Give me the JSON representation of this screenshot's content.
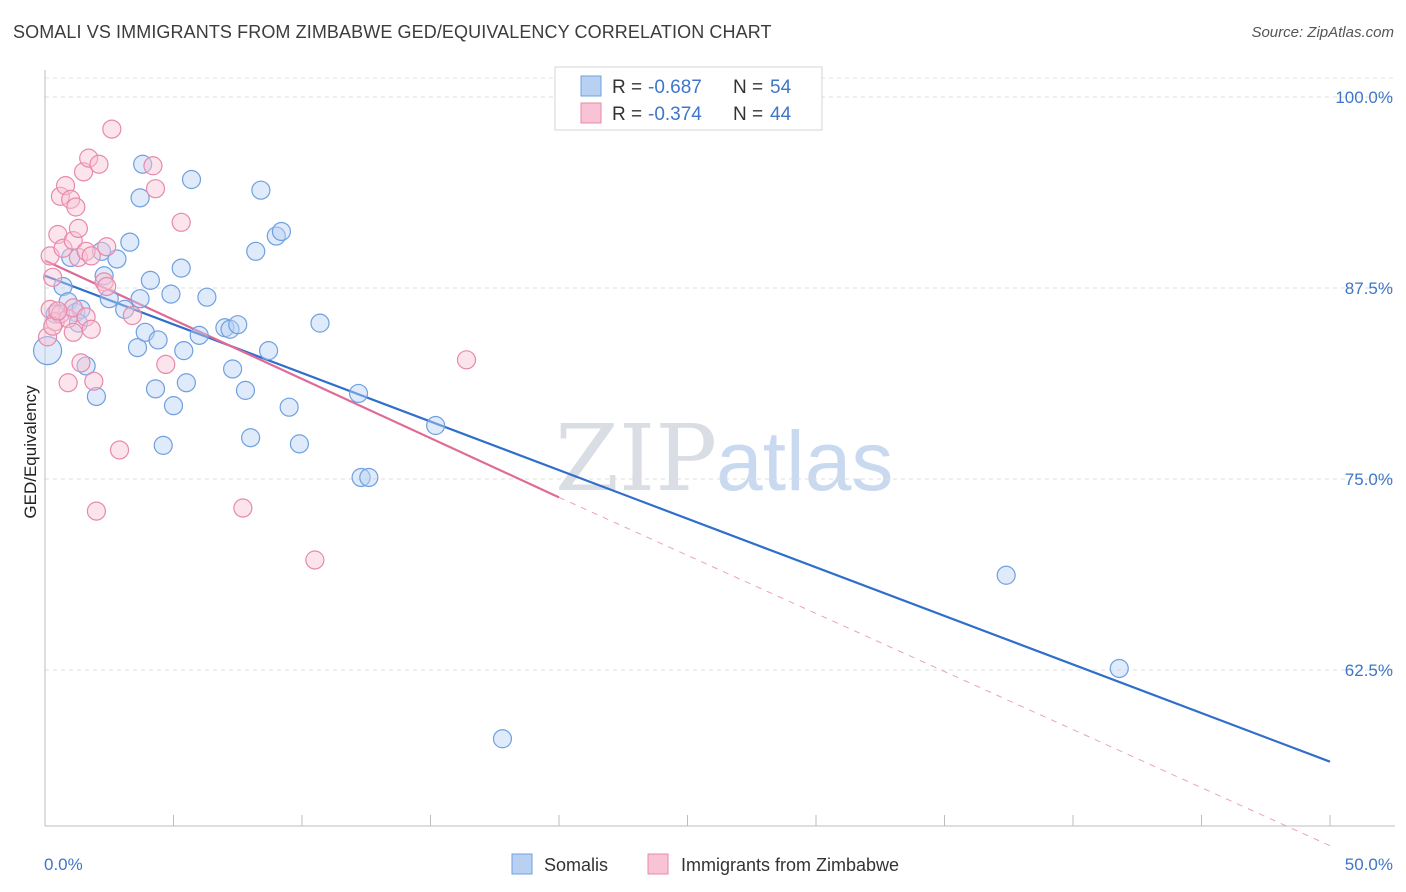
{
  "title": "SOMALI VS IMMIGRANTS FROM ZIMBABWE GED/EQUIVALENCY CORRELATION CHART",
  "source": "Source: ZipAtlas.com",
  "watermark": {
    "zip": "ZIP",
    "atlas": "atlas"
  },
  "chart_data": {
    "type": "scatter",
    "ylabel": "GED/Equivalency",
    "xlim": [
      0,
      50
    ],
    "ylim": [
      50,
      102
    ],
    "x_tick_labels": [
      {
        "v": 0,
        "label": "0.0%"
      },
      {
        "v": 50,
        "label": "50.0%"
      }
    ],
    "y_tick_labels": [
      {
        "v": 100,
        "label": "100.0%"
      },
      {
        "v": 87.5,
        "label": "87.5%"
      },
      {
        "v": 75,
        "label": "75.0%"
      },
      {
        "v": 62.5,
        "label": "62.5%"
      }
    ],
    "grid": "horizontal dashed",
    "legend_stats": [
      {
        "r_label": "R = ",
        "r_value": "-0.687",
        "n_label": "N = ",
        "n_value": "54",
        "color": "#6fa0e0",
        "fill": "#b8d1f3"
      },
      {
        "r_label": "R = ",
        "r_value": "-0.374",
        "n_label": "N = ",
        "n_value": "44",
        "color": "#e889ab",
        "fill": "#f8c3d4"
      }
    ],
    "series": [
      {
        "name": "Somalis",
        "color": "#6fa0e0",
        "fill": "#b8d1f3",
        "trend": {
          "x0": 0,
          "y0": 88.3,
          "x1": 50,
          "y1": 56.5,
          "color": "#2f6fcb"
        },
        "points": [
          [
            0.1,
            83.4
          ],
          [
            0.4,
            85.8
          ],
          [
            0.7,
            87.6
          ],
          [
            0.9,
            86.6
          ],
          [
            1.0,
            89.5
          ],
          [
            1.2,
            85.9
          ],
          [
            1.4,
            86.1
          ],
          [
            1.6,
            82.4
          ],
          [
            2.0,
            80.4
          ],
          [
            2.2,
            89.9
          ],
          [
            2.3,
            88.3
          ],
          [
            2.5,
            86.8
          ],
          [
            2.8,
            89.4
          ],
          [
            3.1,
            86.1
          ],
          [
            3.3,
            90.5
          ],
          [
            3.6,
            83.6
          ],
          [
            3.7,
            93.4
          ],
          [
            3.8,
            95.6
          ],
          [
            3.9,
            84.6
          ],
          [
            4.1,
            88.0
          ],
          [
            4.3,
            80.9
          ],
          [
            4.4,
            84.1
          ],
          [
            4.6,
            77.2
          ],
          [
            4.9,
            87.1
          ],
          [
            5.0,
            79.8
          ],
          [
            5.3,
            88.8
          ],
          [
            5.4,
            83.4
          ],
          [
            5.5,
            81.3
          ],
          [
            5.7,
            94.6
          ],
          [
            6.0,
            84.4
          ],
          [
            6.3,
            86.9
          ],
          [
            7.0,
            84.9
          ],
          [
            7.2,
            84.8
          ],
          [
            7.3,
            82.2
          ],
          [
            7.5,
            85.1
          ],
          [
            7.8,
            80.8
          ],
          [
            8.0,
            77.7
          ],
          [
            8.2,
            89.9
          ],
          [
            8.4,
            93.9
          ],
          [
            8.7,
            83.4
          ],
          [
            9.0,
            90.9
          ],
          [
            9.2,
            91.2
          ],
          [
            9.5,
            79.7
          ],
          [
            9.9,
            77.3
          ],
          [
            10.7,
            85.2
          ],
          [
            12.2,
            80.6
          ],
          [
            12.3,
            75.1
          ],
          [
            12.6,
            75.1
          ],
          [
            15.2,
            78.5
          ],
          [
            17.8,
            58.0
          ],
          [
            37.4,
            68.7
          ],
          [
            41.8,
            62.6
          ],
          [
            3.7,
            86.8
          ],
          [
            1.3,
            85.2
          ]
        ]
      },
      {
        "name": "Immigrants from Zimbabwe",
        "color": "#e889ab",
        "fill": "#f8c3d4",
        "trend": {
          "x0": 0,
          "y0": 89.3,
          "x1": 20,
          "y1": 73.8,
          "color": "#e06a96"
        },
        "trend_dashed": {
          "x0": 20,
          "y0": 73.8,
          "x1": 50,
          "y1": 51.0,
          "color": "#e8a3bb"
        },
        "points": [
          [
            0.1,
            84.3
          ],
          [
            0.2,
            86.1
          ],
          [
            0.2,
            89.6
          ],
          [
            0.3,
            88.2
          ],
          [
            0.4,
            85.3
          ],
          [
            0.5,
            91.0
          ],
          [
            0.6,
            93.5
          ],
          [
            0.6,
            85.8
          ],
          [
            0.7,
            90.1
          ],
          [
            0.8,
            94.2
          ],
          [
            0.9,
            85.5
          ],
          [
            1.0,
            93.3
          ],
          [
            1.1,
            90.6
          ],
          [
            1.1,
            86.2
          ],
          [
            1.2,
            92.8
          ],
          [
            1.3,
            89.5
          ],
          [
            1.3,
            91.4
          ],
          [
            1.4,
            82.6
          ],
          [
            1.5,
            95.1
          ],
          [
            1.6,
            89.9
          ],
          [
            1.6,
            85.6
          ],
          [
            1.7,
            96.0
          ],
          [
            1.8,
            89.6
          ],
          [
            1.9,
            81.4
          ],
          [
            2.0,
            72.9
          ],
          [
            2.1,
            95.6
          ],
          [
            2.3,
            87.9
          ],
          [
            2.4,
            90.2
          ],
          [
            2.6,
            97.9
          ],
          [
            2.9,
            76.9
          ],
          [
            3.4,
            85.7
          ],
          [
            4.2,
            95.5
          ],
          [
            4.3,
            94.0
          ],
          [
            4.7,
            82.5
          ],
          [
            5.3,
            91.8
          ],
          [
            7.7,
            73.1
          ],
          [
            10.5,
            69.7
          ],
          [
            16.4,
            82.8
          ],
          [
            0.9,
            81.3
          ],
          [
            2.4,
            87.6
          ],
          [
            1.8,
            84.8
          ],
          [
            0.3,
            85.0
          ],
          [
            1.1,
            84.6
          ],
          [
            0.5,
            86.0
          ]
        ]
      }
    ]
  }
}
